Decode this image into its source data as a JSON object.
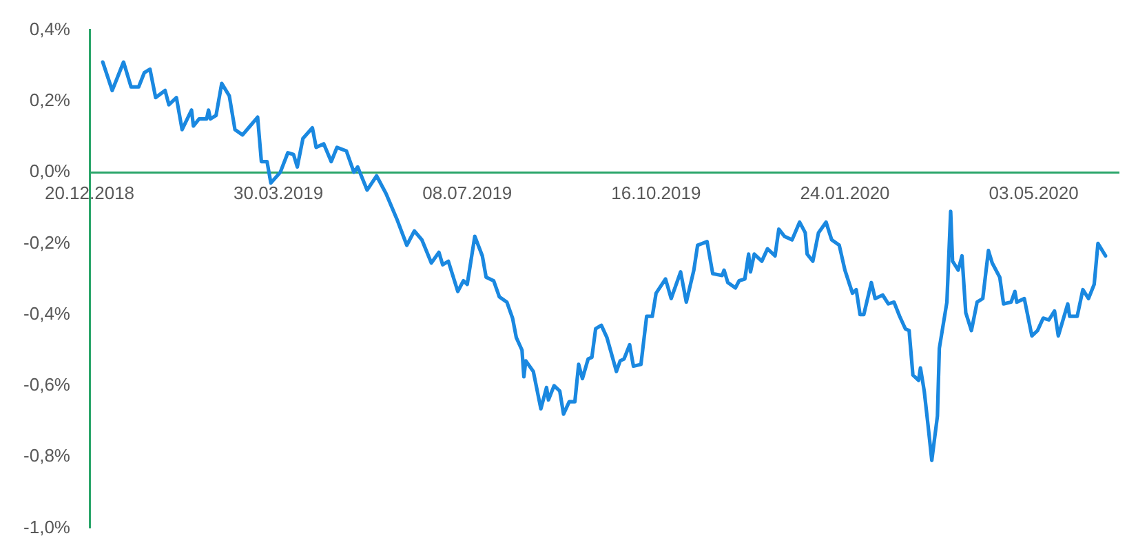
{
  "chart_data": {
    "type": "line",
    "marker": "none",
    "line_style": "solid",
    "xlim": [
      "2018-12-20",
      "2020-06-17"
    ],
    "xticks": [
      {
        "value": "2018-12-20",
        "label": "20.12.2018"
      },
      {
        "value": "2019-03-30",
        "label": "30.03.2019"
      },
      {
        "value": "2019-07-08",
        "label": "08.07.2019"
      },
      {
        "value": "2019-10-16",
        "label": "16.10.2019"
      },
      {
        "value": "2020-01-24",
        "label": "24.01.2020"
      },
      {
        "value": "2020-05-03",
        "label": "03.05.2020"
      }
    ],
    "ylim": [
      -1.0,
      0.4
    ],
    "yticks": [
      {
        "value": -1.0,
        "label": "-1,0%"
      },
      {
        "value": -0.8,
        "label": "-0,8%"
      },
      {
        "value": -0.6,
        "label": "-0,6%"
      },
      {
        "value": -0.4,
        "label": "-0,4%"
      },
      {
        "value": -0.2,
        "label": "-0,2%"
      },
      {
        "value": 0,
        "label": "0,0%"
      },
      {
        "value": 0.2,
        "label": "0,2%"
      },
      {
        "value": 0.4,
        "label": "0,4%"
      }
    ],
    "x": [
      "2018-12-27",
      "2019-01-01",
      "2019-01-04",
      "2019-01-07",
      "2019-01-11",
      "2019-01-15",
      "2019-01-18",
      "2019-01-21",
      "2019-01-24",
      "2019-01-29",
      "2019-01-31",
      "2019-02-04",
      "2019-02-07",
      "2019-02-12",
      "2019-02-13",
      "2019-02-16",
      "2019-02-20",
      "2019-02-21",
      "2019-02-22",
      "2019-02-25",
      "2019-02-28",
      "2019-03-04",
      "2019-03-07",
      "2019-03-11",
      "2019-03-15",
      "2019-03-19",
      "2019-03-21",
      "2019-03-24",
      "2019-03-26",
      "2019-03-31",
      "2019-04-04",
      "2019-04-07",
      "2019-04-09",
      "2019-04-12",
      "2019-04-17",
      "2019-04-19",
      "2019-04-23",
      "2019-04-27",
      "2019-04-30",
      "2019-05-05",
      "2019-05-09",
      "2019-05-11",
      "2019-05-16",
      "2019-05-21",
      "2019-05-26",
      "2019-06-01",
      "2019-06-06",
      "2019-06-10",
      "2019-06-14",
      "2019-06-19",
      "2019-06-23",
      "2019-06-25",
      "2019-06-28",
      "2019-07-03",
      "2019-07-06",
      "2019-07-08",
      "2019-07-12",
      "2019-07-16",
      "2019-07-18",
      "2019-07-22",
      "2019-07-25",
      "2019-07-29",
      "2019-08-01",
      "2019-08-03",
      "2019-08-06",
      "2019-08-07",
      "2019-08-08",
      "2019-08-12",
      "2019-08-16",
      "2019-08-19",
      "2019-08-20",
      "2019-08-23",
      "2019-08-26",
      "2019-08-28",
      "2019-08-31",
      "2019-09-03",
      "2019-09-05",
      "2019-09-07",
      "2019-09-10",
      "2019-09-12",
      "2019-09-14",
      "2019-09-17",
      "2019-09-20",
      "2019-09-25",
      "2019-09-27",
      "2019-09-29",
      "2019-10-02",
      "2019-10-04",
      "2019-10-08",
      "2019-10-11",
      "2019-10-14",
      "2019-10-16",
      "2019-10-21",
      "2019-10-24",
      "2019-10-29",
      "2019-11-01",
      "2019-11-05",
      "2019-11-07",
      "2019-11-12",
      "2019-11-15",
      "2019-11-20",
      "2019-11-21",
      "2019-11-23",
      "2019-11-27",
      "2019-11-29",
      "2019-12-02",
      "2019-12-04",
      "2019-12-05",
      "2019-12-07",
      "2019-12-11",
      "2019-12-14",
      "2019-12-18",
      "2019-12-20",
      "2019-12-23",
      "2019-12-27",
      "2019-12-31",
      "2020-01-03",
      "2020-01-04",
      "2020-01-07",
      "2020-01-10",
      "2020-01-14",
      "2020-01-17",
      "2020-01-21",
      "2020-01-24",
      "2020-01-28",
      "2020-01-30",
      "2020-02-01",
      "2020-02-03",
      "2020-02-07",
      "2020-02-09",
      "2020-02-13",
      "2020-02-16",
      "2020-02-19",
      "2020-02-22",
      "2020-02-25",
      "2020-02-27",
      "2020-02-29",
      "2020-03-03",
      "2020-03-04",
      "2020-03-06",
      "2020-03-08",
      "2020-03-10",
      "2020-03-13",
      "2020-03-14",
      "2020-03-18",
      "2020-03-20",
      "2020-03-21",
      "2020-03-24",
      "2020-03-26",
      "2020-03-28",
      "2020-03-31",
      "2020-04-03",
      "2020-04-06",
      "2020-04-09",
      "2020-04-11",
      "2020-04-15",
      "2020-04-17",
      "2020-04-21",
      "2020-04-23",
      "2020-04-24",
      "2020-04-28",
      "2020-05-02",
      "2020-05-05",
      "2020-05-08",
      "2020-05-11",
      "2020-05-14",
      "2020-05-16",
      "2020-05-21",
      "2020-05-22",
      "2020-05-26",
      "2020-05-29",
      "2020-06-01",
      "2020-06-04",
      "2020-06-06",
      "2020-06-10"
    ],
    "series": [
      {
        "color": "#1a88e0",
        "values": [
          0.31,
          0.23,
          0.27,
          0.31,
          0.24,
          0.24,
          0.28,
          0.29,
          0.21,
          0.23,
          0.19,
          0.21,
          0.12,
          0.175,
          0.13,
          0.15,
          0.15,
          0.175,
          0.15,
          0.16,
          0.25,
          0.215,
          0.12,
          0.105,
          0.13,
          0.155,
          0.03,
          0.03,
          -0.03,
          0.0,
          0.055,
          0.05,
          0.015,
          0.095,
          0.125,
          0.07,
          0.08,
          0.03,
          0.07,
          0.06,
          0.0,
          0.015,
          -0.05,
          -0.01,
          -0.06,
          -0.135,
          -0.205,
          -0.165,
          -0.19,
          -0.255,
          -0.225,
          -0.26,
          -0.25,
          -0.335,
          -0.305,
          -0.315,
          -0.18,
          -0.235,
          -0.295,
          -0.305,
          -0.35,
          -0.365,
          -0.41,
          -0.465,
          -0.5,
          -0.575,
          -0.53,
          -0.56,
          -0.665,
          -0.605,
          -0.64,
          -0.6,
          -0.615,
          -0.68,
          -0.645,
          -0.645,
          -0.54,
          -0.58,
          -0.525,
          -0.52,
          -0.44,
          -0.43,
          -0.465,
          -0.56,
          -0.53,
          -0.525,
          -0.485,
          -0.545,
          -0.54,
          -0.405,
          -0.405,
          -0.34,
          -0.3,
          -0.355,
          -0.28,
          -0.365,
          -0.275,
          -0.205,
          -0.195,
          -0.285,
          -0.29,
          -0.275,
          -0.31,
          -0.325,
          -0.305,
          -0.3,
          -0.23,
          -0.28,
          -0.23,
          -0.25,
          -0.215,
          -0.235,
          -0.16,
          -0.18,
          -0.19,
          -0.14,
          -0.17,
          -0.23,
          -0.25,
          -0.17,
          -0.14,
          -0.19,
          -0.205,
          -0.275,
          -0.34,
          -0.33,
          -0.4,
          -0.4,
          -0.31,
          -0.355,
          -0.345,
          -0.37,
          -0.365,
          -0.405,
          -0.44,
          -0.445,
          -0.57,
          -0.585,
          -0.55,
          -0.615,
          -0.71,
          -0.81,
          -0.685,
          -0.495,
          -0.365,
          -0.11,
          -0.25,
          -0.275,
          -0.235,
          -0.395,
          -0.445,
          -0.365,
          -0.355,
          -0.22,
          -0.255,
          -0.295,
          -0.37,
          -0.365,
          -0.335,
          -0.365,
          -0.355,
          -0.46,
          -0.445,
          -0.41,
          -0.415,
          -0.39,
          -0.46,
          -0.37,
          -0.405,
          -0.405,
          -0.33,
          -0.355,
          -0.315,
          -0.2,
          -0.235
        ]
      }
    ]
  }
}
